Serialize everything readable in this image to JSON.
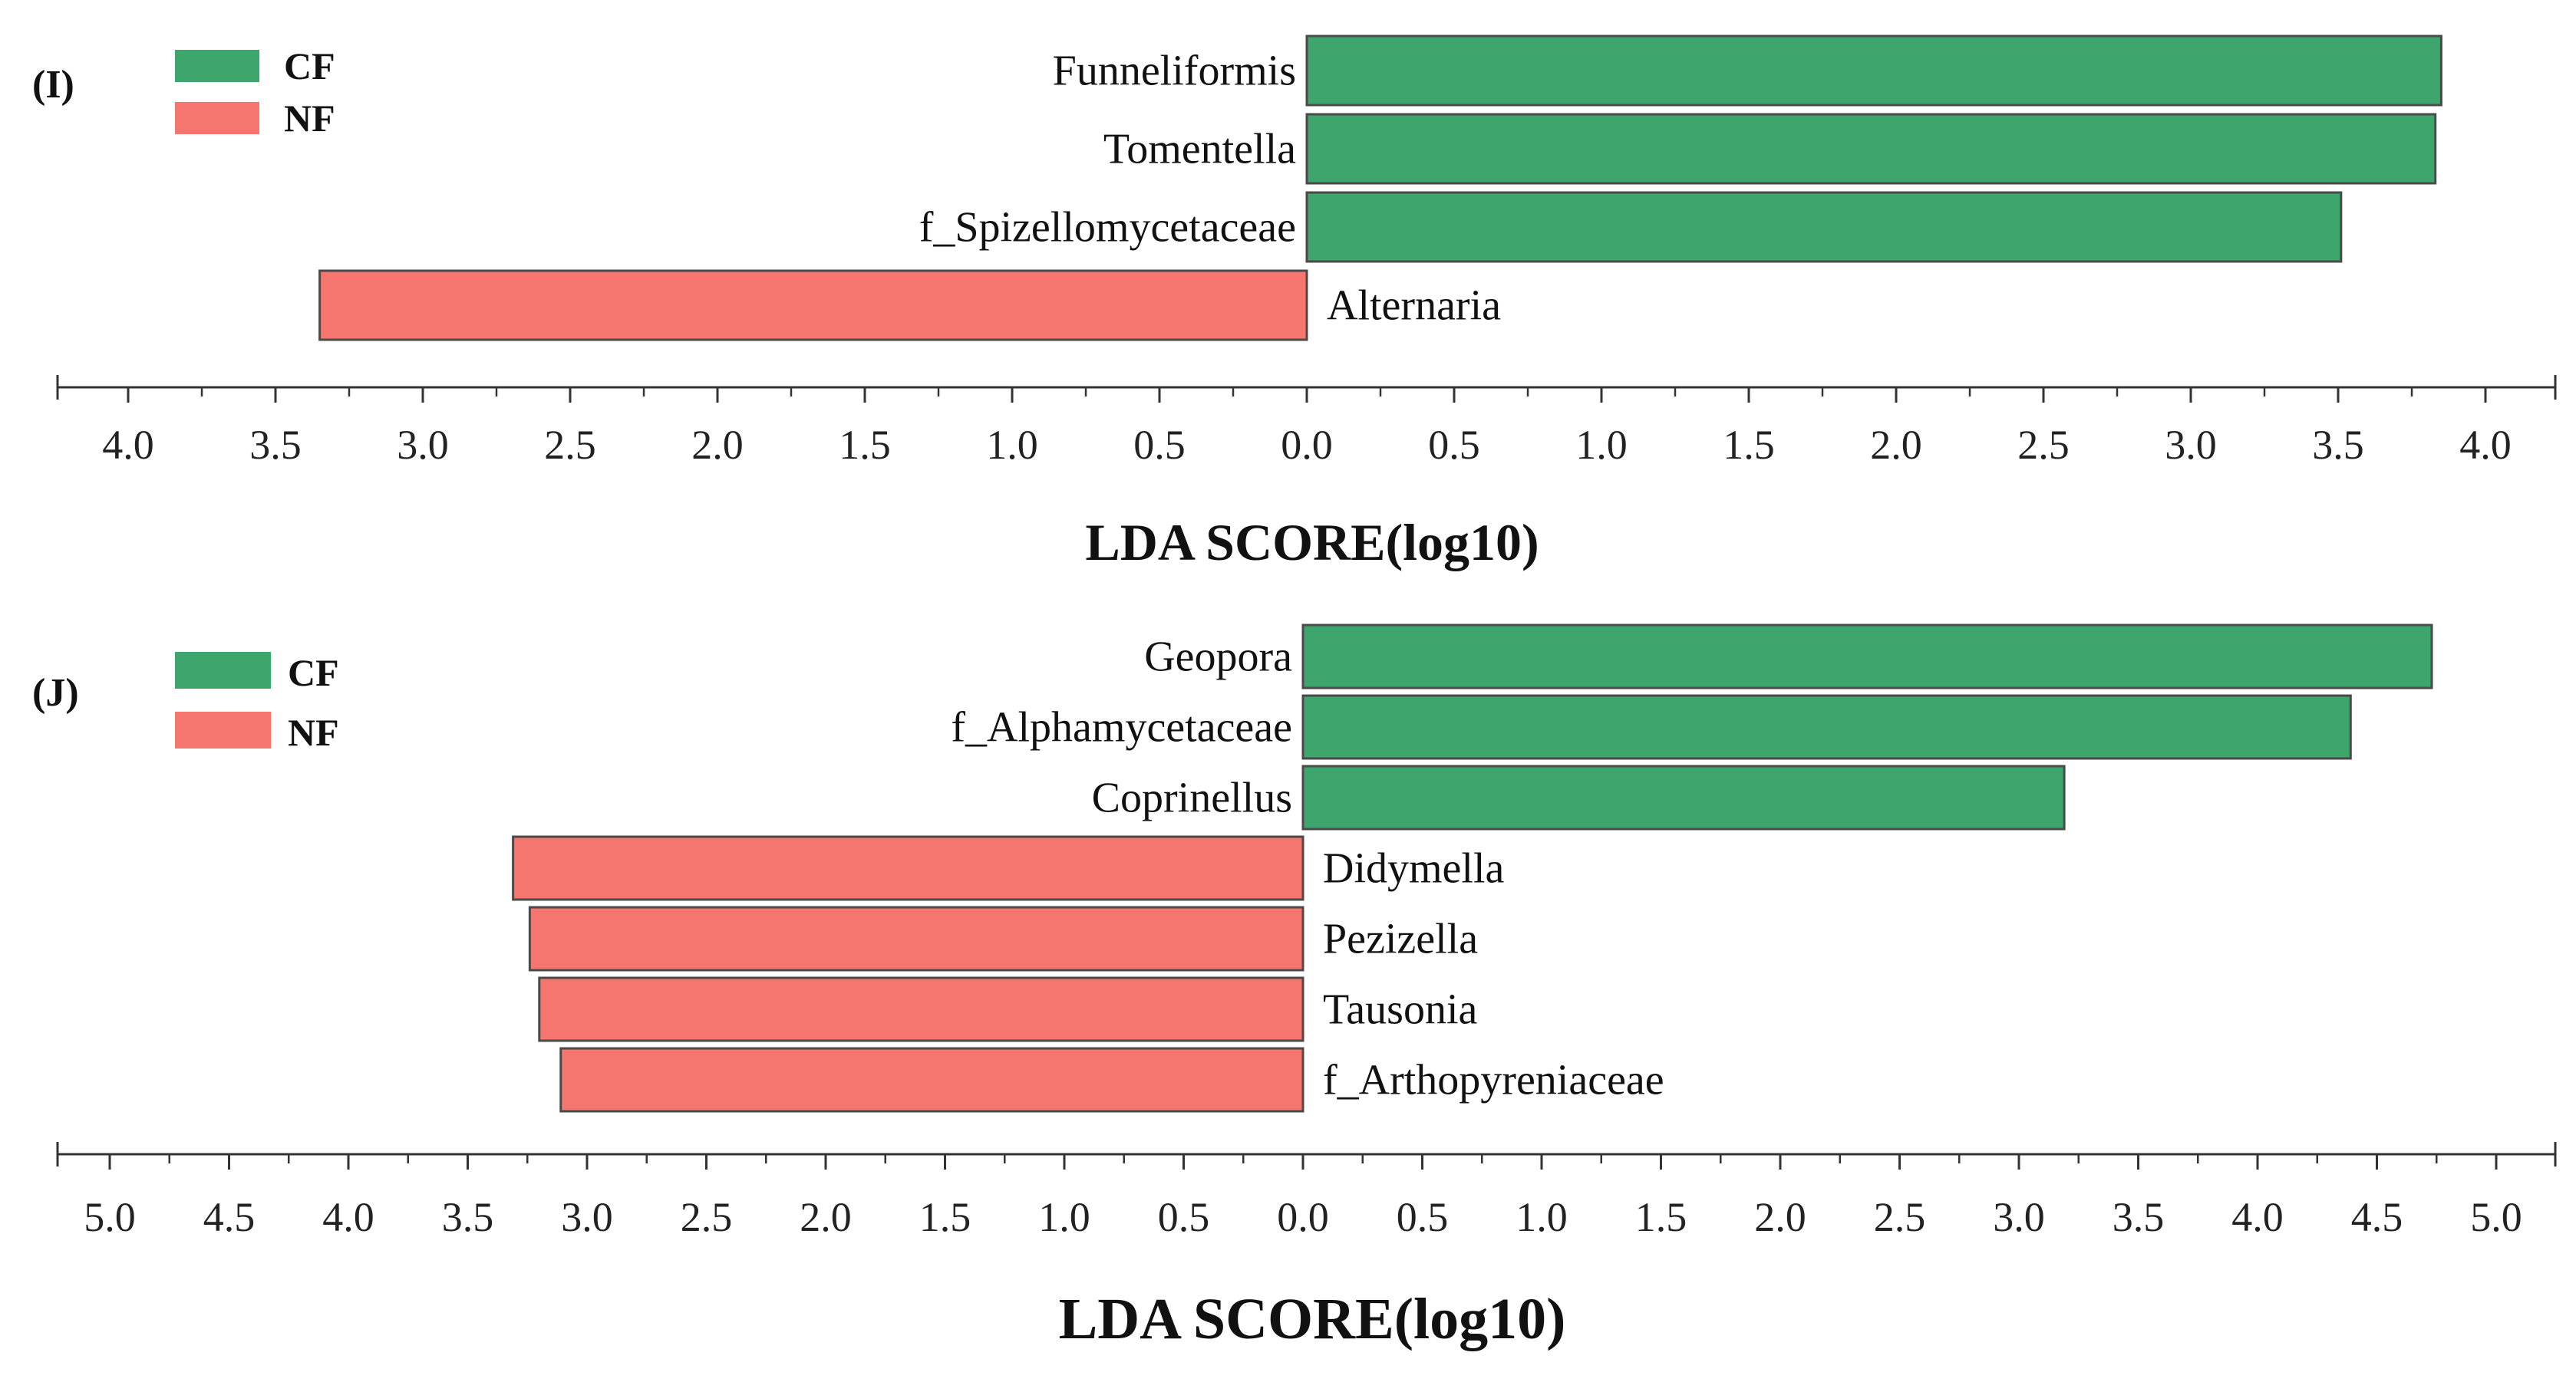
{
  "legend": {
    "cf_label": "CF",
    "nf_label": "NF",
    "cf_color": "#3EA56D",
    "nf_color": "#F4766E",
    "bar_edge_color": "#4a4a4a"
  },
  "chart_data": [
    {
      "type": "bar",
      "orientation": "horizontal",
      "panel_label": "(I)",
      "xlabel": "LDA SCORE(log10)",
      "xlim": [
        -4.2,
        4.2
      ],
      "tick_values": [
        -4.0,
        -3.5,
        -3.0,
        -2.5,
        -2.0,
        -1.5,
        -1.0,
        -0.5,
        0.0,
        0.5,
        1.0,
        1.5,
        2.0,
        2.5,
        3.0,
        3.5,
        4.0
      ],
      "tick_labels": [
        "4.0",
        "3.5",
        "3.0",
        "2.5",
        "2.0",
        "1.5",
        "1.0",
        "0.5",
        "0.0",
        "0.5",
        "1.0",
        "1.5",
        "2.0",
        "2.5",
        "3.0",
        "3.5",
        "4.0"
      ],
      "bars": [
        {
          "label": "Funneliformis",
          "group": "CF",
          "value": 3.85
        },
        {
          "label": "Tomentella",
          "group": "CF",
          "value": 3.83
        },
        {
          "label": "f_Spizellomycetaceae",
          "group": "CF",
          "value": 3.51
        },
        {
          "label": "Alternaria",
          "group": "NF",
          "value": -3.35
        }
      ]
    },
    {
      "type": "bar",
      "orientation": "horizontal",
      "panel_label": "(J)",
      "xlabel": "LDA SCORE(log10)",
      "xlim": [
        -5.2,
        5.2
      ],
      "tick_values": [
        -5.0,
        -4.5,
        -4.0,
        -3.5,
        -3.0,
        -2.5,
        -2.0,
        -1.5,
        -1.0,
        -0.5,
        0.0,
        0.5,
        1.0,
        1.5,
        2.0,
        2.5,
        3.0,
        3.5,
        4.0,
        4.5,
        5.0
      ],
      "tick_labels": [
        "5.0",
        "4.5",
        "4.0",
        "3.5",
        "3.0",
        "2.5",
        "2.0",
        "1.5",
        "1.0",
        "0.5",
        "0.0",
        "0.5",
        "1.0",
        "1.5",
        "2.0",
        "2.5",
        "3.0",
        "3.5",
        "4.0",
        "4.5",
        "5.0"
      ],
      "bars": [
        {
          "label": "Geopora",
          "group": "CF",
          "value": 4.73
        },
        {
          "label": "f_Alphamycetaceae",
          "group": "CF",
          "value": 4.39
        },
        {
          "label": "Coprinellus",
          "group": "CF",
          "value": 3.19
        },
        {
          "label": "Didymella",
          "group": "NF",
          "value": -3.31
        },
        {
          "label": "Pezizella",
          "group": "NF",
          "value": -3.24
        },
        {
          "label": "Tausonia",
          "group": "NF",
          "value": -3.2
        },
        {
          "label": "f_Arthopyreniaceae",
          "group": "NF",
          "value": -3.11
        }
      ]
    }
  ]
}
